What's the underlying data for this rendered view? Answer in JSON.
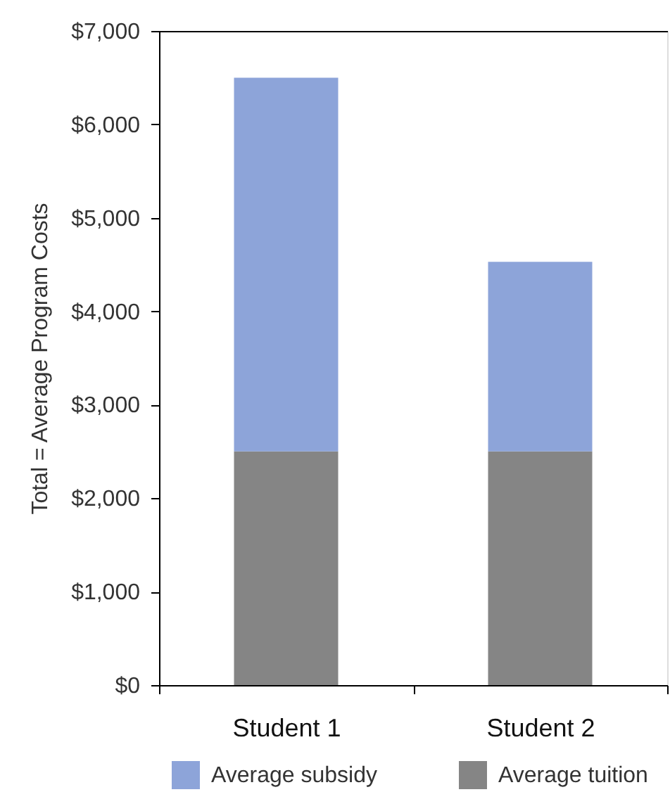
{
  "chart_data": {
    "type": "bar",
    "stacked": true,
    "categories": [
      "Student 1",
      "Student 2"
    ],
    "series": [
      {
        "name": "Average tuition",
        "color": "#858585",
        "values": [
          2500,
          2500
        ]
      },
      {
        "name": "Average subsidy",
        "color": "#8da4d9",
        "values": [
          4000,
          2030
        ]
      }
    ],
    "ylabel": "Total = Average Program Costs",
    "ylim": [
      0,
      7000
    ],
    "yticks": [
      {
        "value": 0,
        "label": "$0"
      },
      {
        "value": 1000,
        "label": "$1,000"
      },
      {
        "value": 2000,
        "label": "$2,000"
      },
      {
        "value": 3000,
        "label": "$3,000"
      },
      {
        "value": 4000,
        "label": "$4,000"
      },
      {
        "value": 5000,
        "label": "$5,000"
      },
      {
        "value": 6000,
        "label": "$6,000"
      },
      {
        "value": 7000,
        "label": "$7,000"
      }
    ],
    "legend": "bottom"
  }
}
